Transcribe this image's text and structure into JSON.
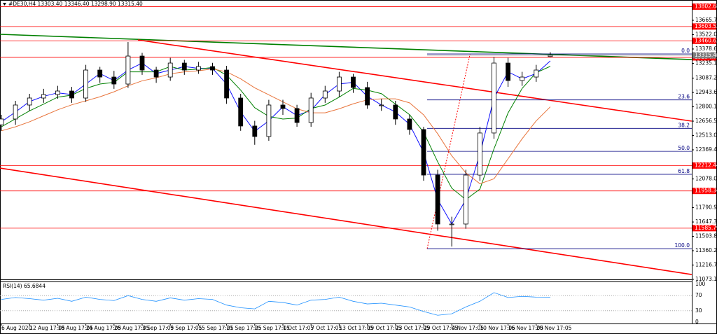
{
  "chart_data": {
    "type": "candlestick",
    "title": "#DE30,H4  13303.40 13346.40 13298.90 13315.40",
    "categories": [
      "6 Aug 2020",
      null,
      "12 Aug 17:05",
      null,
      "18 Aug 17:05",
      null,
      "24 Aug 17:05",
      null,
      "28 Aug 17:05",
      null,
      "3 Sep 17:05",
      null,
      "9 Sep 17:05",
      null,
      "15 Sep 17:05",
      null,
      "21 Sep 17:05",
      null,
      "25 Sep 17:05",
      null,
      "1 Oct 17:05",
      null,
      "7 Oct 17:05",
      null,
      "13 Oct 17:05",
      null,
      "19 Oct 17:05",
      null,
      "23 Oct 17:05",
      null,
      "29 Oct 17:05",
      null,
      "4 Nov 17:05",
      null,
      "10 Nov 17:05",
      null,
      "16 Nov 17:05",
      null,
      "20 Nov 17:05",
      null
    ],
    "open": [
      12620,
      12678,
      12818,
      12888,
      12923,
      12958,
      12888,
      13168,
      13098,
      13028,
      13308,
      13168,
      13098,
      13238,
      13168,
      13203,
      13168,
      12888,
      12608,
      12503,
      12818,
      12783,
      12643,
      12888,
      12958,
      13098,
      12993,
      12818,
      12818,
      12678,
      12573,
      12117,
      11627,
      11627,
      12117,
      12538,
      13238,
      13063,
      13098,
      13303.4
    ],
    "high": [
      12720,
      12860,
      12930,
      12980,
      13010,
      13000,
      13220,
      13200,
      13160,
      13448,
      13340,
      13200,
      13290,
      13270,
      13250,
      13240,
      13210,
      12930,
      12660,
      12870,
      12870,
      12820,
      12940,
      13010,
      13150,
      13130,
      13050,
      12880,
      12860,
      12720,
      12600,
      12170,
      11700,
      12170,
      12600,
      13300,
      13290,
      13150,
      13220,
      13346.4
    ],
    "low": [
      12560,
      12620,
      12760,
      12840,
      12880,
      12840,
      12850,
      13040,
      12980,
      12990,
      13120,
      13040,
      13060,
      13120,
      13130,
      13120,
      12830,
      12560,
      12420,
      12460,
      12720,
      12600,
      12600,
      12840,
      12900,
      12940,
      12780,
      12760,
      12620,
      12520,
      12060,
      11560,
      11402,
      11580,
      12060,
      12480,
      13000,
      13010,
      13050,
      13298.9
    ],
    "close": [
      12678,
      12818,
      12888,
      12923,
      12958,
      12888,
      13168,
      13098,
      13028,
      13308,
      13168,
      13098,
      13238,
      13168,
      13203,
      13168,
      12888,
      12608,
      12503,
      12818,
      12783,
      12643,
      12888,
      12958,
      13098,
      12993,
      12818,
      12818,
      12678,
      12573,
      12117,
      11627,
      11627,
      12117,
      12538,
      13238,
      13063,
      13098,
      13168,
      13315.4
    ],
    "series": [
      {
        "color": "#1010ff",
        "values": [
          12650,
          12748,
          12853,
          12905,
          12940,
          12923,
          13028,
          13133,
          13063,
          13168,
          13238,
          13133,
          13168,
          13203,
          13185,
          13185,
          13028,
          12748,
          12555,
          12660,
          12800,
          12713,
          12765,
          12923,
          13028,
          13045,
          12905,
          12818,
          12748,
          12625,
          12345,
          11872,
          11627,
          11872,
          12327,
          12888,
          13150,
          13080,
          13133,
          13259
        ]
      },
      {
        "color": "#008000",
        "values": [
          12600,
          12680,
          12760,
          12827,
          12897,
          12917,
          12984,
          13028,
          13045,
          13150,
          13150,
          13150,
          13203,
          13168,
          13177,
          13194,
          13117,
          12967,
          12791,
          12704,
          12678,
          12687,
          12783,
          12818,
          12897,
          12984,
          12967,
          12932,
          12827,
          12722,
          12546,
          12249,
          11986,
          11872,
          11977,
          12380,
          12739,
          12984,
          13142,
          13205
        ]
      },
      {
        "color": "#e8743b",
        "values": [
          12560,
          12600,
          12650,
          12710,
          12770,
          12820,
          12860,
          12900,
          12950,
          13010,
          13060,
          13090,
          13130,
          13150,
          13160,
          13180,
          13150,
          13080,
          12990,
          12920,
          12850,
          12780,
          12740,
          12740,
          12780,
          12830,
          12870,
          12880,
          12880,
          12840,
          12720,
          12530,
          12310,
          12140,
          12030,
          12080,
          12280,
          12480,
          12660,
          12800
        ]
      }
    ],
    "ylim": [
      11073.15,
      13840.9
    ],
    "yticks": [
      13665.75,
      {
        "value": 13522.0,
        "label": "13522.00"
      },
      13378.65,
      {
        "value": 13235.1,
        "label": "13235.10"
      },
      {
        "value": 13087.2,
        "label": "13087.20"
      },
      12943.65,
      {
        "value": 12800.1,
        "label": "12800.10"
      },
      12656.55,
      {
        "value": 12513.0,
        "label": "12513.00"
      },
      12369.45,
      {
        "value": 12078.0,
        "label": "12078.00"
      },
      {
        "value": 11790.9,
        "label": "11790.90"
      },
      11647.35,
      {
        "value": 11503.8,
        "label": "11503.80"
      },
      11360.25,
      {
        "value": 11216.7,
        "label": "11216.70"
      },
      11073.15
    ],
    "levels": [
      13802.68,
      13603.53,
      13460.62,
      13294.79,
      12212.44,
      11958.34,
      11585.79
    ],
    "level_color": "#ff0000",
    "bid": {
      "value": 13315.4,
      "label": "13315.40"
    },
    "trendlines": [
      {
        "color": "#008000",
        "x": [
          -0.1,
          49.05
        ],
        "y": [
          13525.6,
          13273
        ]
      },
      {
        "color": "#ff0000",
        "x": [
          9.7,
          49.05
        ],
        "y": [
          13469.5,
          12656.7
        ]
      },
      {
        "color": "#ff0000",
        "x": [
          -0.1,
          49.05
        ],
        "y": [
          12187,
          11122
        ]
      }
    ],
    "fib": {
      "high": 13329,
      "low": 11380,
      "x": [
        30.25,
        33.3
      ],
      "color": "#000080",
      "levels": [
        {
          "value": 0,
          "label": "0.0"
        },
        23.6,
        38.2,
        {
          "value": 50,
          "label": "50.0"
        },
        61.8,
        {
          "value": 100,
          "label": "100.0"
        }
      ]
    },
    "rsi": {
      "title": "RSI(14) 65.6844",
      "color": "#1e90ff",
      "values": [
        60,
        65,
        62,
        58,
        63,
        55,
        66,
        60,
        57,
        70,
        60,
        55,
        64,
        58,
        62,
        60,
        45,
        38,
        35,
        55,
        52,
        45,
        58,
        60,
        66,
        55,
        48,
        50,
        45,
        40,
        28,
        18,
        22,
        40,
        55,
        78,
        65,
        68,
        66,
        65.6844
      ],
      "ylim": [
        0,
        100
      ],
      "yticks": [
        100,
        70,
        30,
        0
      ]
    }
  }
}
